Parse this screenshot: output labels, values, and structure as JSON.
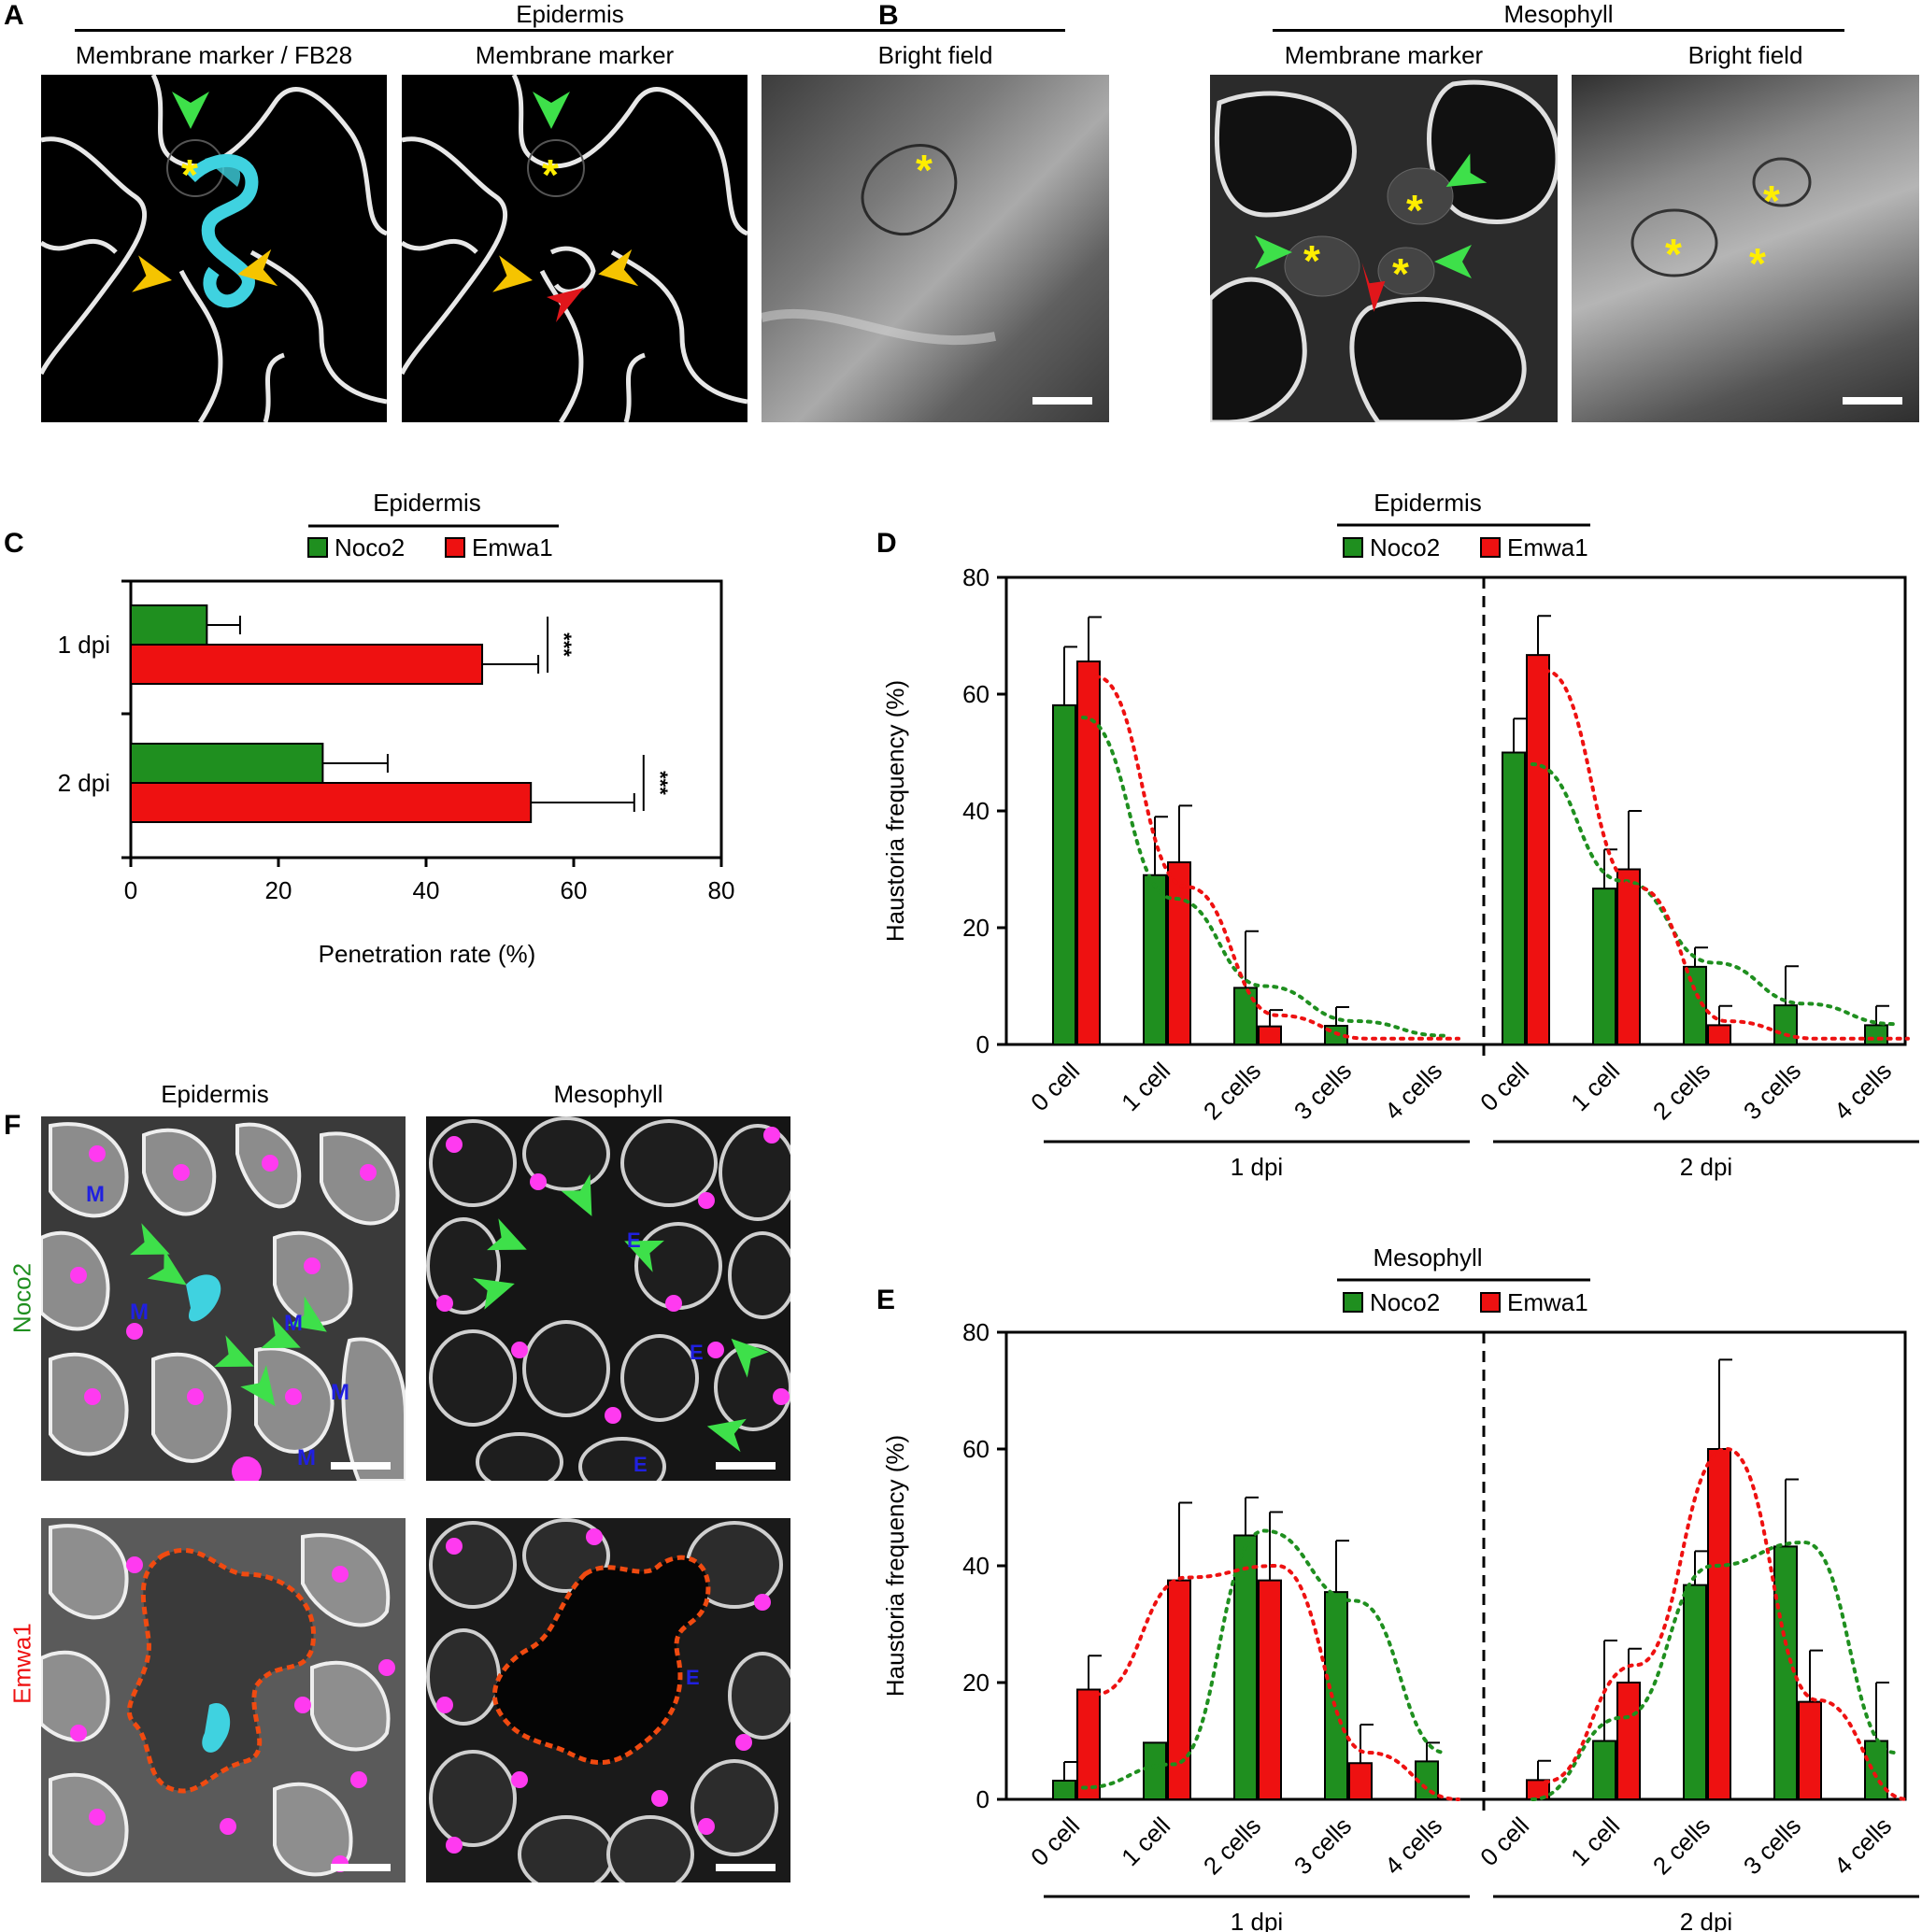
{
  "panel_letters": {
    "A": "A",
    "B": "B",
    "C": "C",
    "D": "D",
    "E": "E",
    "F": "F"
  },
  "panelA": {
    "group": "Epidermis",
    "cols": [
      "Membrane marker / FB28",
      "Membrane marker",
      "Bright field"
    ]
  },
  "panelB": {
    "group": "Mesophyll",
    "cols": [
      "Membrane marker",
      "Bright field"
    ]
  },
  "panelF": {
    "cols": [
      "Epidermis",
      "Mesophyll"
    ],
    "rows": [
      "Noco2",
      "Emwa1"
    ],
    "mark_M": "M",
    "mark_E": "E"
  },
  "asterisk": "*",
  "colors": {
    "noco2": "#1f8f1f",
    "emwa1": "#ee1111",
    "cyan": "#3fd2e0",
    "arrow_green": "#3ee04a",
    "arrow_yellow": "#f5c400",
    "arrow_red": "#e0161b",
    "magenta": "#ff3af0",
    "asterisk": "#ffee00",
    "outline": "#f04a10"
  },
  "chart_data": [
    {
      "id": "C",
      "type": "bar",
      "orientation": "horizontal",
      "title": "Epidermis",
      "categories": [
        "1 dpi",
        "2 dpi"
      ],
      "series": [
        {
          "name": "Noco2",
          "values": [
            10.3,
            26.0
          ],
          "errors": [
            4.5,
            8.8
          ]
        },
        {
          "name": "Emwa1",
          "values": [
            47.6,
            54.2
          ],
          "errors": [
            7.6,
            14.0
          ]
        }
      ],
      "significance": [
        "***",
        "***"
      ],
      "xlabel": "Penetration rate (%)",
      "xlim": [
        0,
        80
      ],
      "xticks": [
        "0",
        "20",
        "40",
        "60",
        "80"
      ]
    },
    {
      "id": "D",
      "type": "bar",
      "title": "Epidermis",
      "groups": [
        "1 dpi",
        "2 dpi"
      ],
      "categories": [
        "0 cell",
        "1 cell",
        "2 cells",
        "3 cells",
        "4 cells"
      ],
      "series": [
        {
          "name": "Noco2",
          "values": [
            [
              58.1,
              29.0,
              9.7,
              3.2,
              0
            ],
            [
              50.0,
              26.7,
              13.3,
              6.7,
              3.3
            ]
          ],
          "errors": [
            [
              10.0,
              10.0,
              9.7,
              3.2,
              0
            ],
            [
              5.8,
              6.7,
              3.3,
              6.7,
              3.3
            ]
          ]
        },
        {
          "name": "Emwa1",
          "values": [
            [
              65.6,
              31.2,
              3.1,
              0,
              0
            ],
            [
              66.7,
              30.0,
              3.3,
              0,
              0
            ]
          ],
          "errors": [
            [
              7.6,
              9.7,
              2.8,
              0,
              0
            ],
            [
              6.7,
              10.0,
              3.3,
              0,
              0
            ]
          ]
        }
      ],
      "trend": {
        "noco2": [
          [
            56,
            25,
            10,
            4,
            1.5
          ],
          [
            48,
            28,
            14,
            7,
            3.5
          ]
        ],
        "emwa1": [
          [
            63,
            27,
            5,
            1,
            1
          ],
          [
            64,
            27,
            4,
            1,
            1
          ]
        ]
      },
      "ylabel": "Haustoria frequency (%)",
      "ylim": [
        0,
        80
      ],
      "yticks": [
        "0",
        "20",
        "40",
        "60",
        "80"
      ]
    },
    {
      "id": "E",
      "type": "bar",
      "title": "Mesophyll",
      "groups": [
        "1 dpi",
        "2 dpi"
      ],
      "categories": [
        "0 cell",
        "1 cell",
        "2 cells",
        "3 cells",
        "4 cells"
      ],
      "series": [
        {
          "name": "Noco2",
          "values": [
            [
              3.2,
              9.7,
              45.2,
              35.5,
              6.5
            ],
            [
              0,
              10.0,
              36.7,
              43.3,
              10.0
            ]
          ],
          "errors": [
            [
              3.2,
              0,
              6.5,
              8.8,
              3.2
            ],
            [
              0,
              17.2,
              5.8,
              11.5,
              10.0
            ]
          ]
        },
        {
          "name": "Emwa1",
          "values": [
            [
              18.8,
              37.5,
              37.5,
              6.2,
              0
            ],
            [
              3.3,
              20.0,
              60.0,
              16.7,
              0
            ]
          ],
          "errors": [
            [
              5.8,
              13.3,
              11.7,
              6.6,
              0
            ],
            [
              3.3,
              5.8,
              15.3,
              8.8,
              0
            ]
          ]
        }
      ],
      "trend": {
        "noco2": [
          [
            2,
            6,
            46,
            34,
            8
          ],
          [
            0,
            14,
            40,
            44,
            8
          ]
        ],
        "emwa1": [
          [
            18,
            38,
            40,
            8,
            0
          ],
          [
            3,
            23,
            60,
            17,
            0
          ]
        ]
      },
      "ylabel": "Haustoria frequency (%)",
      "ylim": [
        0,
        80
      ],
      "yticks": [
        "0",
        "20",
        "40",
        "60",
        "80"
      ]
    }
  ]
}
